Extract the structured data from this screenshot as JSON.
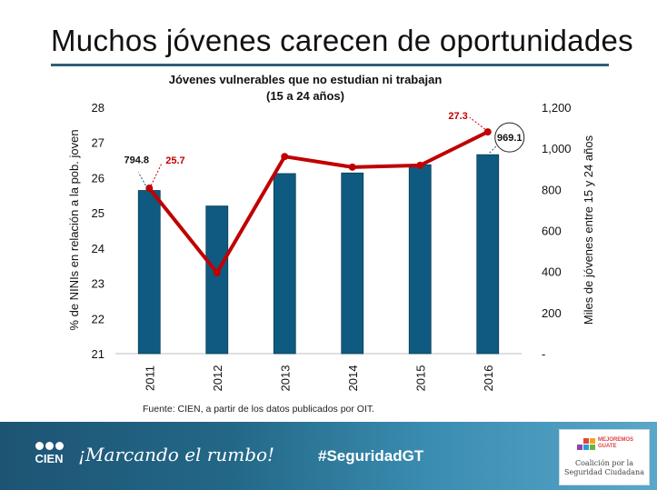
{
  "slide": {
    "title": "Muchos jóvenes carecen de oportunidades",
    "source": "Fuente: CIEN, a partir de los datos publicados por OIT."
  },
  "footer": {
    "logo_text": "CIEN",
    "slogan": "¡Marcando el rumbo!",
    "hashtag": "#SeguridadGT",
    "partner_tag_line1": "MEJOREMOS",
    "partner_tag_line2": "GUATE",
    "partner_name_line1": "Coalición por la",
    "partner_name_line2": "Seguridad Ciudadana"
  },
  "colors": {
    "bar": "#0f5a80",
    "line": "#c00000",
    "title_rule": "#2f5f7a"
  },
  "chart_data": {
    "type": "bar",
    "title": "Jóvenes vulnerables que no estudian ni trabajan",
    "subtitle": "(15 a 24 años)",
    "categories": [
      "2011",
      "2012",
      "2013",
      "2014",
      "2015",
      "2016"
    ],
    "series": [
      {
        "name": "Miles de jóvenes entre 15 y 24 años",
        "type": "bar",
        "axis": "right",
        "values": [
          794.8,
          719,
          877,
          880,
          920,
          969.1
        ]
      },
      {
        "name": "% de NINIs en relación a la pob. joven",
        "type": "line",
        "axis": "left",
        "values": [
          25.7,
          23.3,
          26.6,
          26.3,
          26.35,
          27.3
        ]
      }
    ],
    "ylabel": "% de NINIs en relación a la pob. joven",
    "y2label": "Miles de jóvenes entre 15 y 24 años",
    "ylim": [
      21,
      28
    ],
    "y2lim": [
      0,
      1200
    ],
    "yticks": [
      "21",
      "22",
      "23",
      "24",
      "25",
      "26",
      "27",
      "28"
    ],
    "y2ticks": [
      "-",
      "200",
      "400",
      "600",
      "800",
      "1,000",
      "1,200"
    ],
    "annotations": [
      {
        "text": "794.8",
        "category": "2011",
        "series": "bar"
      },
      {
        "text": "25.7",
        "category": "2011",
        "series": "line"
      },
      {
        "text": "27.3",
        "category": "2016",
        "series": "line"
      },
      {
        "text": "969.1",
        "category": "2016",
        "series": "bar"
      }
    ]
  }
}
